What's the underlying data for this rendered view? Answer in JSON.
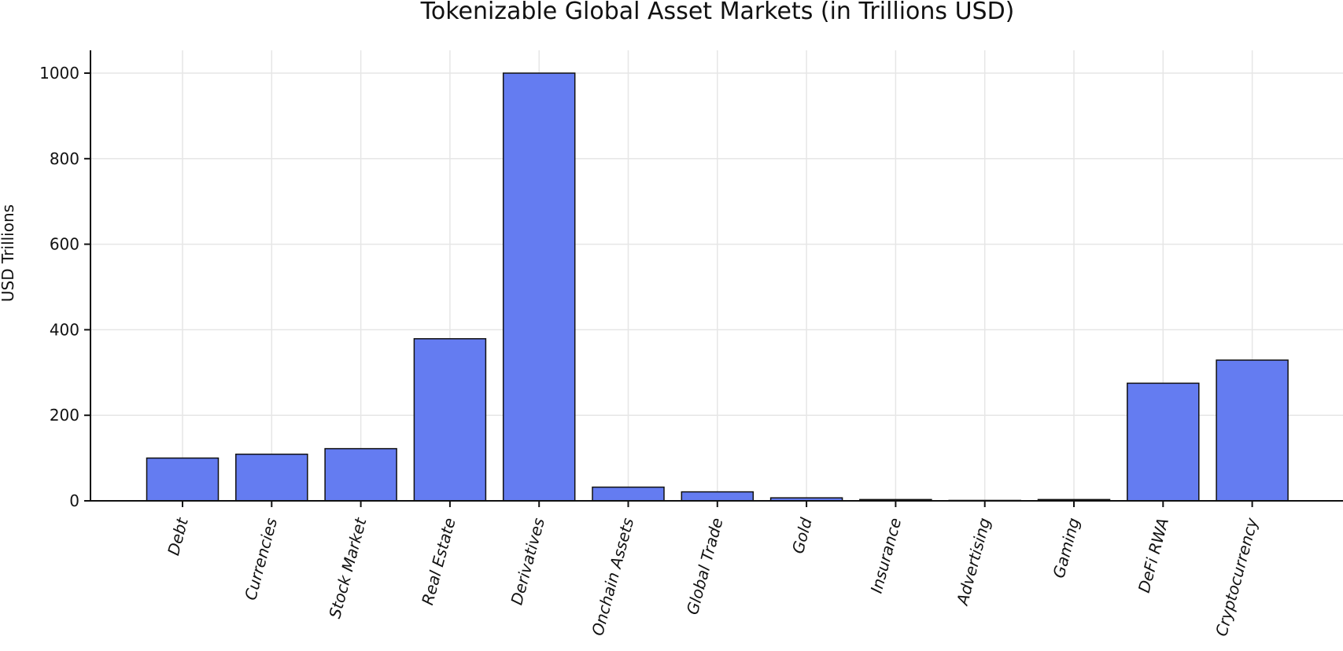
{
  "chart_data": {
    "type": "bar",
    "title": "Tokenizable Global Asset Markets (in Trillions USD)",
    "xlabel": "",
    "ylabel": "USD Trillions",
    "categories": [
      "Debt",
      "Currencies",
      "Stock Market",
      "Real Estate",
      "Derivatives",
      "Onchain Assets",
      "Global Trade",
      "Gold",
      "Insurance",
      "Advertising",
      "Gaming",
      "DeFi RWA",
      "Cryptocurrency"
    ],
    "values": [
      100,
      109,
      122,
      379,
      1000,
      32,
      21,
      7,
      3,
      1,
      3,
      275,
      329
    ],
    "ylim": [
      0,
      1050
    ],
    "yticks": [
      0,
      200,
      400,
      600,
      800,
      1000
    ],
    "grid": true,
    "legend": "none",
    "bar_color": "#647cf1",
    "edge_color": "#111111"
  }
}
